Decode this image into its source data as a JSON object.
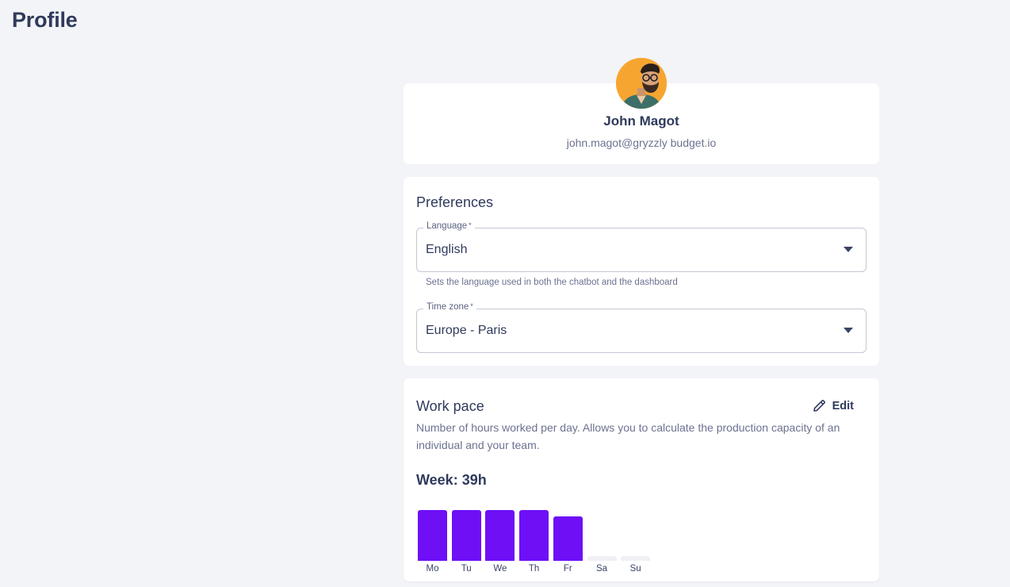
{
  "page": {
    "title": "Profile"
  },
  "profile": {
    "name": "John Magot",
    "email": "john.magot@gryzzly budget.io"
  },
  "preferences": {
    "heading": "Preferences",
    "language": {
      "label": "Language",
      "required_mark": "*",
      "value": "English",
      "helper": "Sets the language used in both the chatbot and the dashboard"
    },
    "timezone": {
      "label": "Time zone",
      "required_mark": "*",
      "value": "Europe - Paris"
    }
  },
  "work_pace": {
    "heading": "Work pace",
    "edit_label": "Edit",
    "description": "Number of hours worked per day. Allows you to calculate the production capacity of an individual and your team.",
    "week_total": "Week: 39h",
    "bar_color": "#6e0ff6",
    "empty_color": "#f0f1f4"
  },
  "chart_data": {
    "type": "bar",
    "categories": [
      "Mo",
      "Tu",
      "We",
      "Th",
      "Fr",
      "Sa",
      "Su"
    ],
    "values": [
      8,
      8,
      8,
      8,
      7,
      0,
      0
    ],
    "ylim": [
      0,
      8
    ]
  }
}
